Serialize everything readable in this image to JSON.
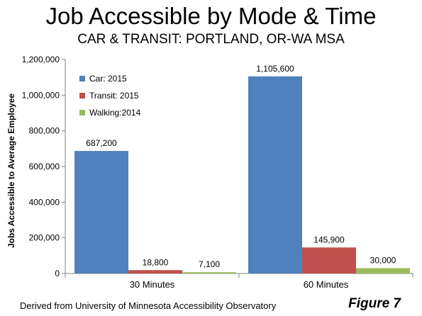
{
  "header": {
    "title": "Job Accessible by Mode & Time",
    "subtitle": "CAR & TRANSIT: PORTLAND, OR-WA MSA"
  },
  "footer": {
    "source": "Derived from University of Minnesota Accessibility Observatory",
    "figure": "Figure 7"
  },
  "chart_data": {
    "type": "bar",
    "title": "Job Accessible by Mode & Time",
    "subtitle": "CAR & TRANSIT: PORTLAND, OR-WA MSA",
    "xlabel": "",
    "ylabel": "Jobs Accessible to Average Employee",
    "categories": [
      "30 Minutes",
      "60 Minutes"
    ],
    "series": [
      {
        "name": "Car: 2015",
        "values": [
          687200,
          1105600
        ],
        "labels": [
          "687,200",
          "1,105,600"
        ],
        "color": "#4f81bd"
      },
      {
        "name": "Transit: 2015",
        "values": [
          18800,
          145900
        ],
        "labels": [
          "18,800",
          "145,900"
        ],
        "color": "#c0504d"
      },
      {
        "name": "Walking:2014",
        "values": [
          7100,
          30000
        ],
        "labels": [
          "7,100",
          "30,000"
        ],
        "color": "#9bbb59"
      }
    ],
    "ylim": [
      0,
      1200000
    ],
    "yticks": [
      0,
      200000,
      400000,
      600000,
      800000,
      1000000,
      1200000
    ],
    "ytick_labels": [
      "0",
      "200,000",
      "400,000",
      "600,000",
      "800,000",
      "1,000,000",
      "1,200,000"
    ],
    "grid": false,
    "legend": "top-left"
  }
}
